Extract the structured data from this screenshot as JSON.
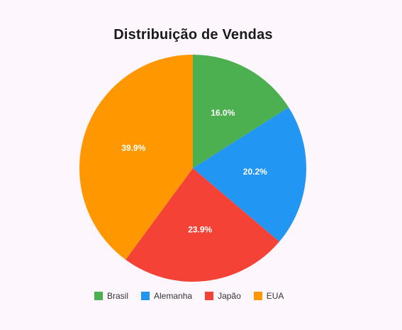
{
  "chart_data": {
    "type": "pie",
    "title": "Distribuição de Vendas",
    "categories": [
      "Brasil",
      "Alemanha",
      "Japão",
      "EUA"
    ],
    "values": [
      16.0,
      20.2,
      23.9,
      39.9
    ],
    "labels": [
      "16.0%",
      "20.2%",
      "23.9%",
      "39.9%"
    ],
    "colors": [
      "#4caf50",
      "#2196f3",
      "#f44336",
      "#ff9800"
    ],
    "legend": {
      "placement": "bottom",
      "entries": [
        "Brasil",
        "Alemanha",
        "Japão",
        "EUA"
      ]
    }
  }
}
